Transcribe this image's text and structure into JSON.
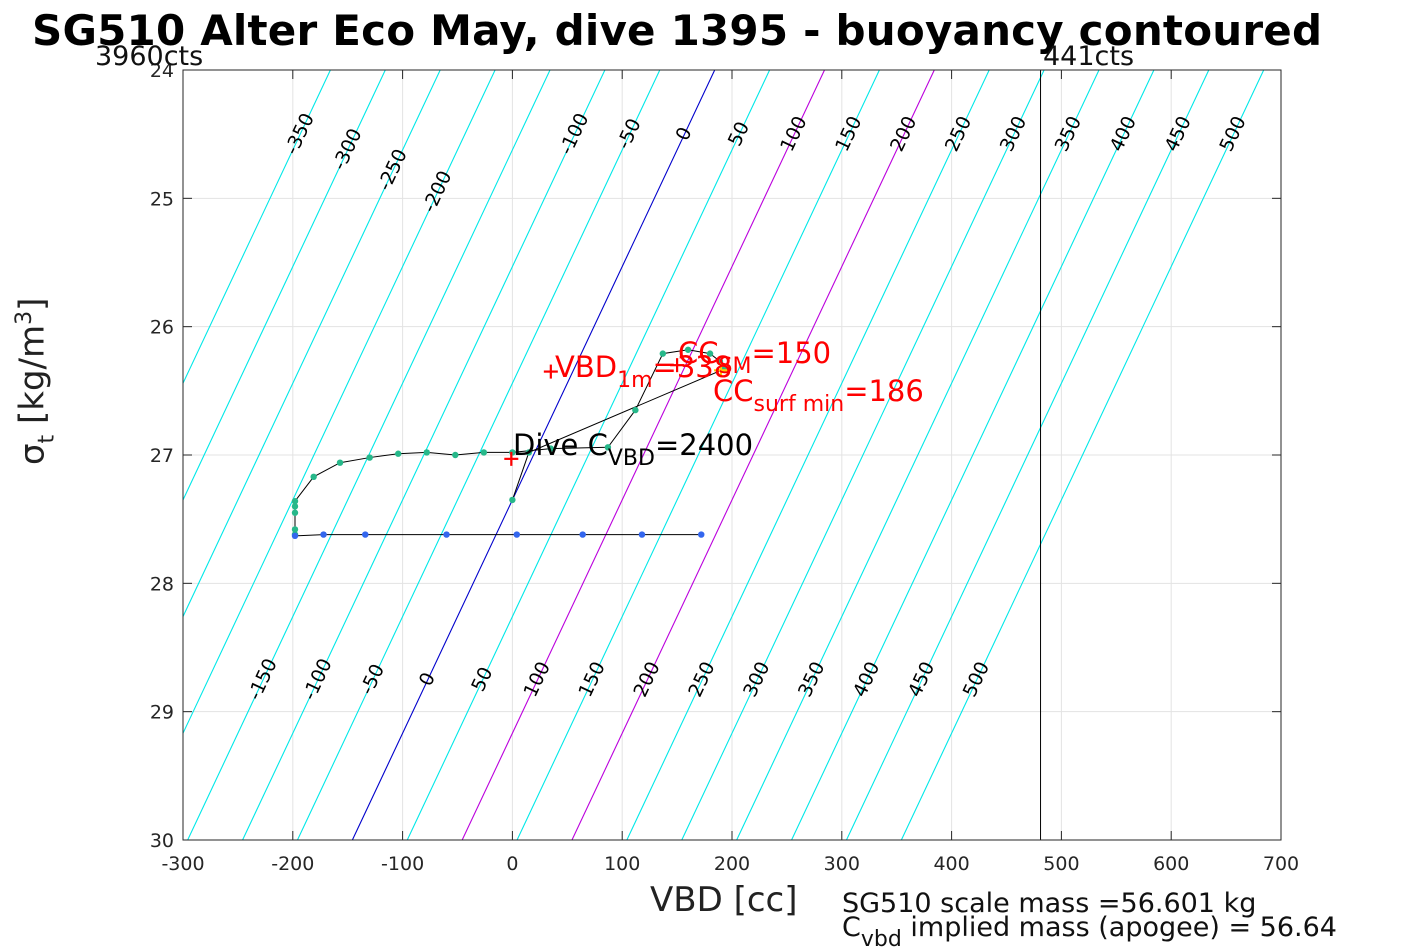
{
  "chart_data": {
    "type": "line",
    "title": "SG510 Alter Eco May, dive 1395 - buoyancy contoured",
    "xlabel": "VBD [cc]",
    "ylabel_symbol": "σ",
    "ylabel_sub": "t",
    "ylabel_unit": " [kg/m",
    "ylabel_sup": "3",
    "ylabel_close": "]",
    "xlim": [
      -300,
      700
    ],
    "ylim": [
      24,
      30
    ],
    "y_reversed": true,
    "grid": true,
    "x_ticks": [
      -300,
      -200,
      -100,
      0,
      100,
      200,
      300,
      400,
      500,
      600,
      700
    ],
    "y_ticks": [
      24,
      25,
      26,
      27,
      28,
      29,
      30
    ],
    "x_tick_labels": [
      "-300",
      "-200",
      "-100",
      "0",
      "100",
      "200",
      "300",
      "400",
      "500",
      "600",
      "700"
    ],
    "y_tick_labels": [
      "24",
      "25",
      "26",
      "27",
      "28",
      "29",
      "30"
    ],
    "contour_levels": [
      -350,
      -300,
      -250,
      -200,
      -150,
      -100,
      -50,
      0,
      50,
      100,
      150,
      200,
      250,
      300,
      350,
      400,
      450,
      500
    ],
    "contour_labels_top": [
      "-350",
      "-300",
      "-250",
      "-200",
      "-100",
      "-50",
      "0",
      "50",
      "100",
      "150",
      "200",
      "250",
      "300",
      "350",
      "400",
      "450",
      "500"
    ],
    "contour_labels_bottom": [
      "-150",
      "-100",
      "-50",
      "0",
      "50",
      "100",
      "150",
      "200",
      "250",
      "300",
      "350",
      "400",
      "450",
      "500"
    ],
    "contour_colors": {
      "default": "#00e8e8",
      "zero": "#0000cc",
      "highlight": "#bb00dd"
    },
    "highlight_levels": [
      100,
      200
    ],
    "contour_slope_cc_per_sigma": -55,
    "contour_ref_sigma": 27.35,
    "vertical_line": {
      "x": 481
    },
    "left_counts_label": "3960cts",
    "right_counts_label": "441cts",
    "dive_points": [
      {
        "x": -198,
        "y": 27.62
      },
      {
        "x": -198,
        "y": 27.58
      },
      {
        "x": -198,
        "y": 27.45
      },
      {
        "x": -198,
        "y": 27.4
      },
      {
        "x": -198,
        "y": 27.36
      },
      {
        "x": -181,
        "y": 27.17
      },
      {
        "x": -157,
        "y": 27.06
      },
      {
        "x": -130,
        "y": 27.02
      },
      {
        "x": -104,
        "y": 26.99
      },
      {
        "x": -78,
        "y": 26.98
      },
      {
        "x": -52,
        "y": 27.0
      },
      {
        "x": -26,
        "y": 26.98
      },
      {
        "x": 0,
        "y": 26.98
      },
      {
        "x": 35,
        "y": 26.95
      },
      {
        "x": 87,
        "y": 26.94
      },
      {
        "x": 112,
        "y": 26.65
      },
      {
        "x": 137,
        "y": 26.21
      },
      {
        "x": 160,
        "y": 26.18
      },
      {
        "x": 180,
        "y": 26.21
      },
      {
        "x": 189,
        "y": 26.27
      },
      {
        "x": 193,
        "y": 26.33
      },
      {
        "x": 15,
        "y": 26.98
      },
      {
        "x": 0,
        "y": 27.35
      }
    ],
    "climb_points": [
      {
        "x": 172,
        "y": 27.62
      },
      {
        "x": 118,
        "y": 27.62
      },
      {
        "x": 64,
        "y": 27.62
      },
      {
        "x": 4,
        "y": 27.62
      },
      {
        "x": -60,
        "y": 27.62
      },
      {
        "x": -134,
        "y": 27.62
      },
      {
        "x": -172,
        "y": 27.62
      },
      {
        "x": -198,
        "y": 27.63
      }
    ],
    "dive_color": "#26b88a",
    "climb_color": "#3366ee",
    "markers": [
      {
        "x": -1,
        "y": 27.03,
        "color": "#ff0000"
      },
      {
        "x": 35,
        "y": 26.35,
        "color": "#ff0000"
      },
      {
        "x": 150,
        "y": 26.3,
        "color": "#ff0000"
      },
      {
        "x": 190,
        "y": 26.34,
        "color": "#ffcc00"
      }
    ],
    "annotations": {
      "vbd1m_main": "VBD",
      "vbd1m_sub": "1m",
      "vbd1m_val": "=338",
      "cc_main": "CC",
      "cc_sub": "SM",
      "cc_val": "=150",
      "ccsurf_main": "CC",
      "ccsurf_sub": "surf min",
      "ccsurf_val": "=186",
      "dive_main": "Dive C",
      "dive_sub": "VBD",
      "dive_val": "=2400"
    }
  },
  "footer": {
    "scale_mass": "SG510 scale mass =56.601 kg",
    "implied_mass_main": "C",
    "implied_mass_sub": "vbd",
    "implied_mass_rest": " implied mass (apogee) = 56.64"
  }
}
